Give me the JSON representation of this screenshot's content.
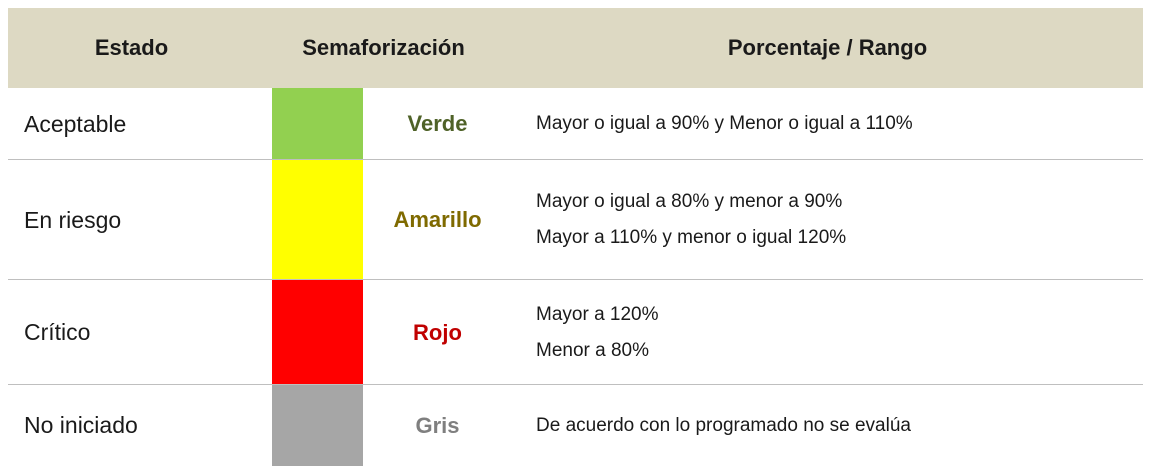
{
  "table": {
    "headers": [
      "Estado",
      "Semaforización",
      "Porcentaje / Rango"
    ],
    "header_background": "#ddd9c3",
    "rows": [
      {
        "estado": "Aceptable",
        "color": "Verde",
        "swatch": "#92d050",
        "text_color": "#4f6228",
        "rangos": [
          "Mayor o igual a 90% y Menor o igual a 110%"
        ]
      },
      {
        "estado": "En riesgo",
        "color": "Amarillo",
        "swatch": "#ffff00",
        "text_color": "#7f6a00",
        "rangos": [
          "Mayor o igual a 80% y menor a 90%",
          "Mayor a 110% y menor o igual 120%"
        ]
      },
      {
        "estado": "Crítico",
        "color": "Rojo",
        "swatch": "#ff0000",
        "text_color": "#c00000",
        "rangos": [
          "Mayor a 120%",
          "Menor a 80%"
        ]
      },
      {
        "estado": "No iniciado",
        "color": "Gris",
        "swatch": "#a6a6a6",
        "text_color": "#7f7f7f",
        "rangos": [
          "De acuerdo con lo programado no se evalúa"
        ]
      }
    ]
  }
}
